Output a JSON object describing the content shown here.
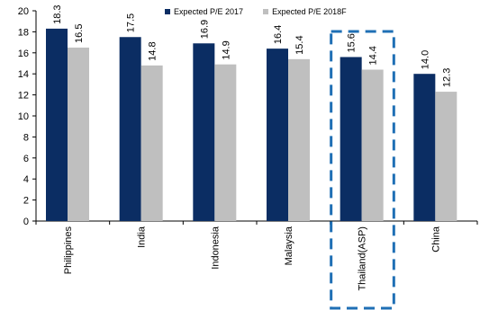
{
  "chart_data": {
    "type": "bar",
    "categories": [
      "Philippines",
      "India",
      "Indonesia",
      "Malaysia",
      "Thailand(ASP)",
      "China"
    ],
    "series": [
      {
        "name": "Expected P/E 2017",
        "values": [
          18.3,
          17.5,
          16.9,
          16.4,
          15.6,
          14.0
        ]
      },
      {
        "name": "Expected P/E 2018F",
        "values": [
          16.5,
          14.8,
          14.9,
          15.4,
          14.4,
          12.3
        ]
      }
    ],
    "data_labels": [
      [
        "18.3",
        "16.5"
      ],
      [
        "17.5",
        "14.8"
      ],
      [
        "16.9",
        "14.9"
      ],
      [
        "16.4",
        "15.4"
      ],
      [
        "15.6",
        "14.4"
      ],
      [
        "14.0",
        "12.3"
      ]
    ],
    "yticks": [
      "0",
      "2",
      "4",
      "6",
      "8",
      "10",
      "12",
      "14",
      "16",
      "18",
      "20"
    ],
    "ylim": [
      0,
      20
    ],
    "legend_position": "top",
    "highlight_category": "Thailand(ASP)",
    "colors": {
      "series1": "#0b2d63",
      "series2": "#bfbfbf",
      "highlight": "#1f6fb5"
    }
  }
}
